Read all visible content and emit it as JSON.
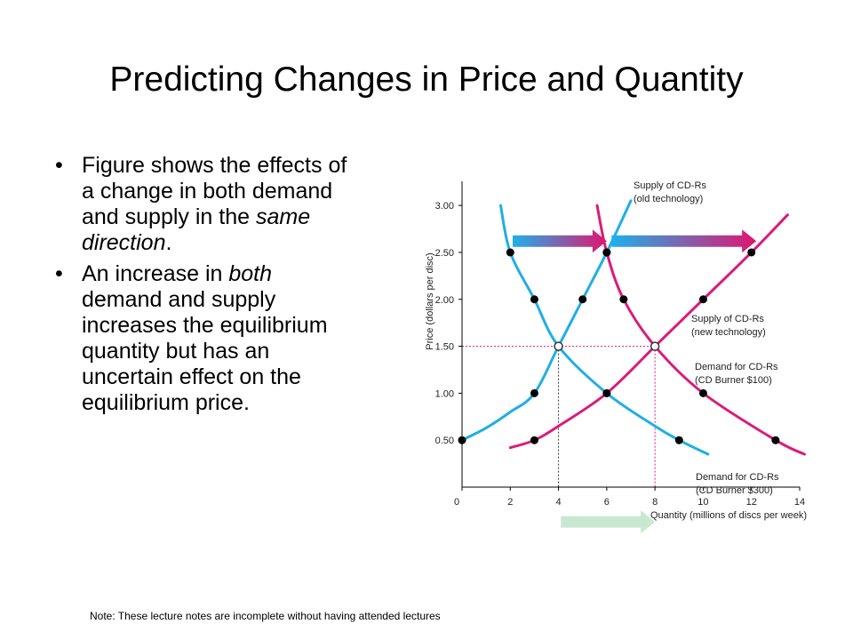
{
  "slide": {
    "title": "Predicting Changes in Price and Quantity",
    "bullets": [
      [
        {
          "text": "Figure shows the effects of a change in both demand and supply in the ",
          "italic": false
        },
        {
          "text": "same direction",
          "italic": true
        },
        {
          "text": ".",
          "italic": false
        }
      ],
      [
        {
          "text": "An increase in ",
          "italic": false
        },
        {
          "text": "both",
          "italic": true
        },
        {
          "text": " demand and supply increases the equilibrium quantity but has an uncertain effect on the equilibrium price.",
          "italic": false
        }
      ]
    ],
    "footer": "Note: These lecture notes are incomplete without having attended lectures"
  },
  "chart_data": {
    "type": "line",
    "xlabel": "Quantity (millions of discs per week)",
    "ylabel": "Price (dollars per disc)",
    "xlim": [
      0,
      14
    ],
    "ylim": [
      0,
      3.2
    ],
    "x_ticks": [
      "0",
      "2",
      "4",
      "6",
      "8",
      "10",
      "12",
      "14"
    ],
    "x_tick_values": [
      0,
      2,
      4,
      6,
      8,
      10,
      12,
      14
    ],
    "y_ticks": [
      "0.50",
      "1.00",
      "1.50",
      "2.00",
      "2.50",
      "3.00"
    ],
    "y_tick_values": [
      0.5,
      1.0,
      1.5,
      2.0,
      2.5,
      3.0
    ],
    "highlight_y_tick": "1.50",
    "highlight_x_tick": "8",
    "colors": {
      "cyan": "#20aee6",
      "magenta": "#dc1a7a",
      "axis": "#000000",
      "mint": "#c8e8d2"
    },
    "series": [
      {
        "name": "Supply of CD-Rs (old technology)",
        "label_lines": [
          "Supply of CD-Rs",
          "(old technology)"
        ],
        "color": "#20aee6",
        "x": [
          0,
          1,
          2,
          3,
          4,
          5,
          6,
          7
        ],
        "y": [
          0.5,
          0.63,
          0.8,
          1.0,
          1.5,
          2.0,
          2.5,
          3.05
        ],
        "points": [
          [
            0,
            0.5
          ],
          [
            3,
            1.0
          ],
          [
            4,
            1.5
          ],
          [
            5,
            2.0
          ],
          [
            6,
            2.5
          ]
        ]
      },
      {
        "name": "Supply of CD-Rs (new technology)",
        "label_lines": [
          "Supply of CD-Rs",
          "(new technology)"
        ],
        "color": "#dc1a7a",
        "x": [
          2,
          3,
          4,
          6,
          8,
          9,
          10,
          12,
          13.5
        ],
        "y": [
          0.42,
          0.5,
          0.65,
          1.0,
          1.5,
          1.75,
          2.0,
          2.5,
          2.9
        ],
        "points": [
          [
            3,
            0.5
          ],
          [
            6,
            1.0
          ],
          [
            8,
            1.5
          ],
          [
            10,
            2.0
          ],
          [
            12,
            2.5
          ]
        ]
      },
      {
        "name": "Demand for CD-Rs (CD Burner $300)",
        "label_lines": [
          "Demand for CD-Rs",
          "(CD Burner $300)"
        ],
        "color": "#20aee6",
        "x": [
          1.6,
          2,
          3,
          4,
          6,
          8,
          9,
          10.2
        ],
        "y": [
          3.0,
          2.5,
          2.0,
          1.5,
          1.0,
          0.65,
          0.5,
          0.35
        ],
        "points": [
          [
            2,
            2.5
          ],
          [
            3,
            2.0
          ],
          [
            4,
            1.5
          ],
          [
            6,
            1.0
          ],
          [
            9,
            0.5
          ]
        ]
      },
      {
        "name": "Demand for CD-Rs (CD Burner $100)",
        "label_lines": [
          "Demand for CD-Rs",
          "(CD Burner $100)"
        ],
        "color": "#dc1a7a",
        "x": [
          5.6,
          6,
          6.7,
          8,
          10,
          13,
          14.2
        ],
        "y": [
          3.0,
          2.5,
          2.0,
          1.5,
          1.0,
          0.5,
          0.35
        ],
        "points": [
          [
            6,
            2.5
          ],
          [
            6.7,
            2.0
          ],
          [
            8,
            1.5
          ],
          [
            10,
            1.0
          ],
          [
            13,
            0.5
          ]
        ]
      }
    ],
    "equilibria": [
      {
        "x": 4,
        "y": 1.5,
        "color": "#20aee6"
      },
      {
        "x": 8,
        "y": 1.5,
        "color": "#dc1a7a"
      }
    ],
    "arrows": [
      {
        "from": [
          2.1,
          2.62
        ],
        "to": [
          6.0,
          2.62
        ],
        "style": "cyan-to-magenta"
      },
      {
        "from": [
          6.2,
          2.62
        ],
        "to": [
          12.2,
          2.62
        ],
        "style": "cyan-to-magenta"
      },
      {
        "from": [
          4.1,
          -0.37
        ],
        "to": [
          8.0,
          -0.37
        ],
        "style": "mint"
      }
    ]
  }
}
